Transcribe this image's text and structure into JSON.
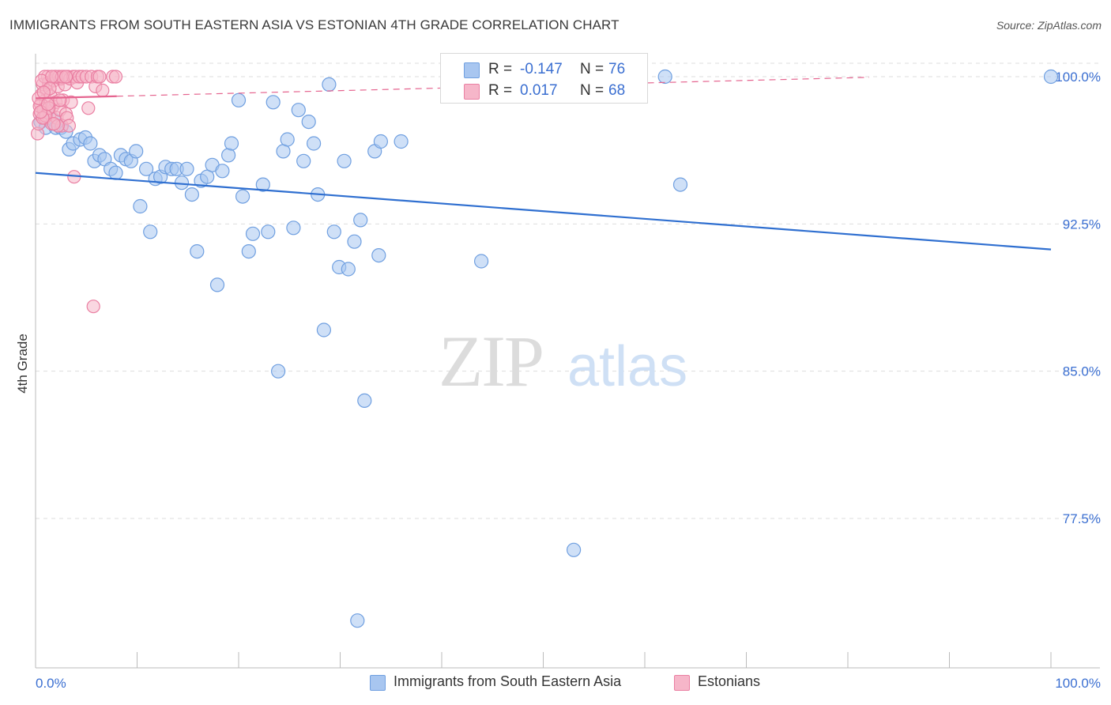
{
  "title": "IMMIGRANTS FROM SOUTH EASTERN ASIA VS ESTONIAN 4TH GRADE CORRELATION CHART",
  "source": "Source: ZipAtlas.com",
  "watermark": {
    "zip": "ZIP",
    "atlas": "atlas"
  },
  "colors": {
    "blue_fill": "#a8c6f0",
    "blue_stroke": "#6f9fe0",
    "blue_line": "#2f6fd0",
    "pink_fill": "#f6b6c9",
    "pink_stroke": "#ea7fa2",
    "pink_line": "#e5648f",
    "axis_text": "#3b6fd1",
    "grid": "#dddddd"
  },
  "legend": {
    "r_label": "R =",
    "n_label": "N =",
    "rows": [
      {
        "r": "-0.147",
        "n": "76",
        "color": "#a8c6f0"
      },
      {
        "r": "0.017",
        "n": "68",
        "color": "#f6b6c9"
      }
    ]
  },
  "chart_data": {
    "type": "scatter",
    "title": "IMMIGRANTS FROM SOUTH EASTERN ASIA VS ESTONIAN 4TH GRADE CORRELATION CHART",
    "xlabel": "",
    "ylabel": "4th Grade",
    "xlim": [
      0,
      100
    ],
    "ylim": [
      70.8,
      102.0
    ],
    "x_tick_labels": [
      "0.0%",
      "100.0%"
    ],
    "y_ticks": [
      77.5,
      85.0,
      92.5,
      100.0
    ],
    "y_tick_labels": [
      "77.5%",
      "85.0%",
      "92.5%",
      "100.0%"
    ],
    "grid": true,
    "legend_position": "bottom",
    "series": [
      {
        "name": "Immigrants from South Eastern Asia",
        "color": "#a8c6f0",
        "trend": {
          "x": [
            0,
            100
          ],
          "y": [
            95.1,
            91.2
          ],
          "dashed_from": null
        },
        "points": [
          [
            0.5,
            97.7
          ],
          [
            1.0,
            97.4
          ],
          [
            1.2,
            98.3
          ],
          [
            1.8,
            97.8
          ],
          [
            2.0,
            97.4
          ],
          [
            2.5,
            97.4
          ],
          [
            3.0,
            97.2
          ],
          [
            3.3,
            96.3
          ],
          [
            3.7,
            96.6
          ],
          [
            4.4,
            96.8
          ],
          [
            4.9,
            96.9
          ],
          [
            5.4,
            96.6
          ],
          [
            5.8,
            95.7
          ],
          [
            6.3,
            96.0
          ],
          [
            6.8,
            95.8
          ],
          [
            7.4,
            95.3
          ],
          [
            7.9,
            95.1
          ],
          [
            8.4,
            96.0
          ],
          [
            8.9,
            95.8
          ],
          [
            9.4,
            95.7
          ],
          [
            9.9,
            96.2
          ],
          [
            10.3,
            93.4
          ],
          [
            10.9,
            95.3
          ],
          [
            11.3,
            92.1
          ],
          [
            11.8,
            94.8
          ],
          [
            12.3,
            94.9
          ],
          [
            12.8,
            95.4
          ],
          [
            13.4,
            95.3
          ],
          [
            13.9,
            95.3
          ],
          [
            14.4,
            94.6
          ],
          [
            14.9,
            95.3
          ],
          [
            15.4,
            94.0
          ],
          [
            15.9,
            91.1
          ],
          [
            16.3,
            94.7
          ],
          [
            16.9,
            94.9
          ],
          [
            17.4,
            95.5
          ],
          [
            17.9,
            89.4
          ],
          [
            18.4,
            95.2
          ],
          [
            19.0,
            96.0
          ],
          [
            19.3,
            96.6
          ],
          [
            20.0,
            98.8
          ],
          [
            20.4,
            93.9
          ],
          [
            21.0,
            91.1
          ],
          [
            21.4,
            92.0
          ],
          [
            22.4,
            94.5
          ],
          [
            22.9,
            92.1
          ],
          [
            23.4,
            98.7
          ],
          [
            23.9,
            85.0
          ],
          [
            24.4,
            96.2
          ],
          [
            24.8,
            96.8
          ],
          [
            25.4,
            92.3
          ],
          [
            25.9,
            98.3
          ],
          [
            26.4,
            95.7
          ],
          [
            26.9,
            97.7
          ],
          [
            27.4,
            96.6
          ],
          [
            27.8,
            94.0
          ],
          [
            28.4,
            87.1
          ],
          [
            28.9,
            99.6
          ],
          [
            29.4,
            92.1
          ],
          [
            29.9,
            90.3
          ],
          [
            30.4,
            95.7
          ],
          [
            30.8,
            90.2
          ],
          [
            31.4,
            91.6
          ],
          [
            32.0,
            92.7
          ],
          [
            32.4,
            83.5
          ],
          [
            33.4,
            96.2
          ],
          [
            33.8,
            90.9
          ],
          [
            34.0,
            96.7
          ],
          [
            36.0,
            96.7
          ],
          [
            43.9,
            90.6
          ],
          [
            59.4,
            99.9
          ],
          [
            53.0,
            75.9
          ],
          [
            62.0,
            100.0
          ],
          [
            63.5,
            94.5
          ],
          [
            100.0,
            100.0
          ],
          [
            31.7,
            72.3
          ]
        ]
      },
      {
        "name": "Estonians",
        "color": "#f6b6c9",
        "trend": {
          "x": [
            0,
            100
          ],
          "y": [
            98.9,
            100.2
          ],
          "dashed_from": 8.0
        },
        "points": [
          [
            0.2,
            97.1
          ],
          [
            0.3,
            97.6
          ],
          [
            0.4,
            98.1
          ],
          [
            0.5,
            98.6
          ],
          [
            0.6,
            99.1
          ],
          [
            0.7,
            99.6
          ],
          [
            0.8,
            98.3
          ],
          [
            0.9,
            97.9
          ],
          [
            1.0,
            98.8
          ],
          [
            1.1,
            99.3
          ],
          [
            1.2,
            100.0
          ],
          [
            1.3,
            99.7
          ],
          [
            1.4,
            98.1
          ],
          [
            1.5,
            99.0
          ],
          [
            1.6,
            97.6
          ],
          [
            1.7,
            98.5
          ],
          [
            1.8,
            99.8
          ],
          [
            1.9,
            100.0
          ],
          [
            2.0,
            98.7
          ],
          [
            2.1,
            97.9
          ],
          [
            2.2,
            99.5
          ],
          [
            2.3,
            100.0
          ],
          [
            2.4,
            98.3
          ],
          [
            2.5,
            99.9
          ],
          [
            2.6,
            97.5
          ],
          [
            2.7,
            98.8
          ],
          [
            2.8,
            100.0
          ],
          [
            2.9,
            99.6
          ],
          [
            3.0,
            98.1
          ],
          [
            3.1,
            97.9
          ],
          [
            3.2,
            100.0
          ],
          [
            3.3,
            97.5
          ],
          [
            3.4,
            99.9
          ],
          [
            3.5,
            98.7
          ],
          [
            3.7,
            100.0
          ],
          [
            3.8,
            94.9
          ],
          [
            3.9,
            100.0
          ],
          [
            4.1,
            99.7
          ],
          [
            4.3,
            100.0
          ],
          [
            4.6,
            100.0
          ],
          [
            5.0,
            100.0
          ],
          [
            5.2,
            98.4
          ],
          [
            5.5,
            100.0
          ],
          [
            5.7,
            88.3
          ],
          [
            5.9,
            99.5
          ],
          [
            6.1,
            100.0
          ],
          [
            6.3,
            100.0
          ],
          [
            6.6,
            99.3
          ],
          [
            7.6,
            100.0
          ],
          [
            7.9,
            100.0
          ],
          [
            0.4,
            98.5
          ],
          [
            0.9,
            100.0
          ],
          [
            1.3,
            98.4
          ],
          [
            2.0,
            100.0
          ],
          [
            2.6,
            100.0
          ],
          [
            0.6,
            99.8
          ],
          [
            1.6,
            100.0
          ],
          [
            1.0,
            98.0
          ],
          [
            0.3,
            98.9
          ],
          [
            0.7,
            97.9
          ],
          [
            1.4,
            99.4
          ],
          [
            2.2,
            97.5
          ],
          [
            3.0,
            100.0
          ],
          [
            2.4,
            98.8
          ],
          [
            1.8,
            97.6
          ],
          [
            0.5,
            98.2
          ],
          [
            1.2,
            98.6
          ],
          [
            0.8,
            99.2
          ]
        ]
      }
    ]
  },
  "bottom_legend": [
    {
      "label": "Immigrants from South Eastern Asia",
      "color": "#a8c6f0"
    },
    {
      "label": "Estonians",
      "color": "#f6b6c9"
    }
  ]
}
